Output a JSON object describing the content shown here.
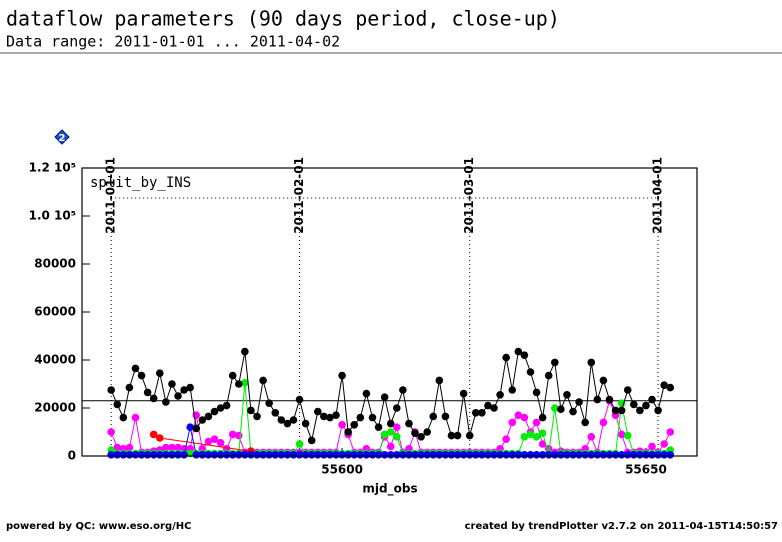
{
  "chart_data": {
    "type": "scatter",
    "title": "dataflow parameters (90 days period, close-up)",
    "subtitle": "Data range: 2011-01-01 ... 2011-04-02",
    "badge": "2",
    "annotation": "split_by_INS",
    "xlabel": "mjd_obs",
    "footer_left": "powered by QC: www.eso.org/HC",
    "footer_right": "created by trendPlotter v2.7.2 on 2011-04-15T14:50:57",
    "xlim": [
      55557.2,
      55658.4
    ],
    "ylim": [
      0,
      120000
    ],
    "xticks": [
      55600,
      55650
    ],
    "yticks": [
      0,
      20000,
      40000,
      60000,
      80000,
      {
        "value": 100000,
        "label": "1.0 10⁵"
      },
      {
        "value": 120000,
        "label": "1.2 10⁵"
      }
    ],
    "date_markers": [
      {
        "value": 55562,
        "label": "2011-01-01"
      },
      {
        "value": 55593,
        "label": "2011-02-01"
      },
      {
        "value": 55621,
        "label": "2011-03-01"
      },
      {
        "value": 55652,
        "label": "2011-04-01"
      }
    ],
    "reference_lines": [
      {
        "value": 107500,
        "style": "dotted"
      },
      {
        "value": 23000,
        "style": "solid"
      }
    ],
    "x": [
      55562,
      55563,
      55564,
      55565,
      55566,
      55567,
      55568,
      55569,
      55570,
      55571,
      55572,
      55573,
      55574,
      55575,
      55576,
      55577,
      55578,
      55579,
      55580,
      55581,
      55582,
      55583,
      55584,
      55585,
      55586,
      55587,
      55588,
      55589,
      55590,
      55591,
      55592,
      55593,
      55594,
      55595,
      55596,
      55597,
      55598,
      55599,
      55600,
      55601,
      55602,
      55603,
      55604,
      55605,
      55606,
      55607,
      55608,
      55609,
      55610,
      55611,
      55612,
      55613,
      55614,
      55615,
      55616,
      55617,
      55618,
      55619,
      55620,
      55621,
      55622,
      55623,
      55624,
      55625,
      55626,
      55627,
      55628,
      55629,
      55630,
      55631,
      55632,
      55633,
      55634,
      55635,
      55636,
      55637,
      55638,
      55639,
      55640,
      55641,
      55642,
      55643,
      55644,
      55645,
      55646,
      55647,
      55648,
      55649,
      55650,
      55651,
      55652,
      55653,
      55654
    ],
    "series": [
      {
        "color": "#ff00ff",
        "values": [
          10000,
          3500,
          3000,
          3500,
          16000,
          1500,
          1500,
          2000,
          2500,
          3500,
          3500,
          3500,
          3000,
          3000,
          17000,
          3000,
          6000,
          7000,
          5500,
          3000,
          9000,
          8500,
          1500,
          2000,
          1500,
          1500,
          1500,
          1500,
          1500,
          1500,
          1500,
          1500,
          1500,
          1500,
          1500,
          1500,
          1500,
          1500,
          13000,
          9000,
          1500,
          1500,
          3000,
          1500,
          1500,
          8000,
          4000,
          12000,
          1500,
          3000,
          10000,
          1500,
          1500,
          1500,
          1500,
          1500,
          1500,
          1500,
          1500,
          1500,
          1500,
          1500,
          1500,
          1500,
          3000,
          7000,
          14000,
          17000,
          16000,
          10000,
          14000,
          5000,
          3000,
          1500,
          2000,
          1500,
          1500,
          1500,
          3000,
          8000,
          1500,
          14000,
          23000,
          17000,
          9000,
          1500,
          1500,
          2000,
          1500,
          4000,
          1500,
          5000,
          10000
        ]
      },
      {
        "color": "#00ee00",
        "values": [
          2500,
          1000,
          1000,
          1000,
          1000,
          1000,
          1000,
          1000,
          1000,
          1000,
          1000,
          1000,
          1000,
          1000,
          1000,
          1000,
          1000,
          1000,
          1000,
          1000,
          1000,
          1000,
          30500,
          1000,
          1000,
          1000,
          1000,
          1000,
          1000,
          1000,
          1000,
          5000,
          1000,
          1000,
          1000,
          1000,
          1000,
          1000,
          1000,
          1000,
          1000,
          1000,
          1000,
          1000,
          1000,
          9000,
          10000,
          8000,
          1000,
          1000,
          1000,
          1000,
          1000,
          1000,
          1000,
          1000,
          1000,
          1000,
          1000,
          1000,
          1000,
          1000,
          1000,
          1000,
          1000,
          1000,
          1000,
          1000,
          8000,
          9000,
          8000,
          9500,
          1000,
          20000,
          1000,
          1000,
          1000,
          1000,
          1000,
          1000,
          1000,
          1000,
          1000,
          1000,
          22000,
          8500,
          1000,
          1000,
          1000,
          1000,
          1000,
          1000,
          2500
        ]
      },
      {
        "color": "#ff0000",
        "x": [
          55569,
          55570,
          55585
        ],
        "values": [
          9000,
          7500,
          2000
        ]
      },
      {
        "color": "#0000ff",
        "values": [
          500,
          500,
          500,
          500,
          500,
          500,
          500,
          500,
          500,
          500,
          500,
          500,
          500,
          12000,
          500,
          500,
          500,
          500,
          500,
          500,
          500,
          500,
          500,
          500,
          500,
          500,
          500,
          500,
          500,
          500,
          500,
          500,
          500,
          500,
          500,
          500,
          500,
          500,
          500,
          500,
          500,
          500,
          500,
          500,
          500,
          500,
          500,
          500,
          500,
          500,
          500,
          500,
          500,
          500,
          500,
          500,
          500,
          500,
          500,
          500,
          500,
          500,
          500,
          500,
          500,
          500,
          500,
          500,
          500,
          500,
          500,
          500,
          500,
          500,
          500,
          500,
          500,
          500,
          500,
          500,
          500,
          500,
          500,
          500,
          500,
          500,
          500,
          500,
          500,
          500,
          500,
          500,
          500
        ]
      },
      {
        "color": "#000000",
        "values": [
          27500,
          21500,
          16000,
          28500,
          36500,
          33500,
          26500,
          24000,
          34500,
          22500,
          30000,
          25000,
          27500,
          28500,
          11500,
          15000,
          16500,
          18500,
          20000,
          21000,
          33500,
          30000,
          43500,
          19000,
          16500,
          31500,
          22000,
          18000,
          15000,
          13500,
          15000,
          23500,
          13500,
          6500,
          18500,
          16500,
          16000,
          17000,
          33500,
          10000,
          13000,
          16000,
          26000,
          16000,
          12000,
          24500,
          13500,
          20000,
          27500,
          13500,
          9500,
          8000,
          10000,
          16500,
          31500,
          16500,
          8500,
          8500,
          26000,
          8500,
          18000,
          18000,
          21000,
          20000,
          25500,
          41000,
          27500,
          43500,
          42000,
          35000,
          26500,
          16000,
          33500,
          39000,
          19500,
          25500,
          18500,
          22500,
          14000,
          39000,
          23500,
          31500,
          23500,
          19000,
          19000,
          27500,
          21500,
          19000,
          21000,
          23500,
          19000,
          29500,
          28500
        ]
      }
    ]
  }
}
